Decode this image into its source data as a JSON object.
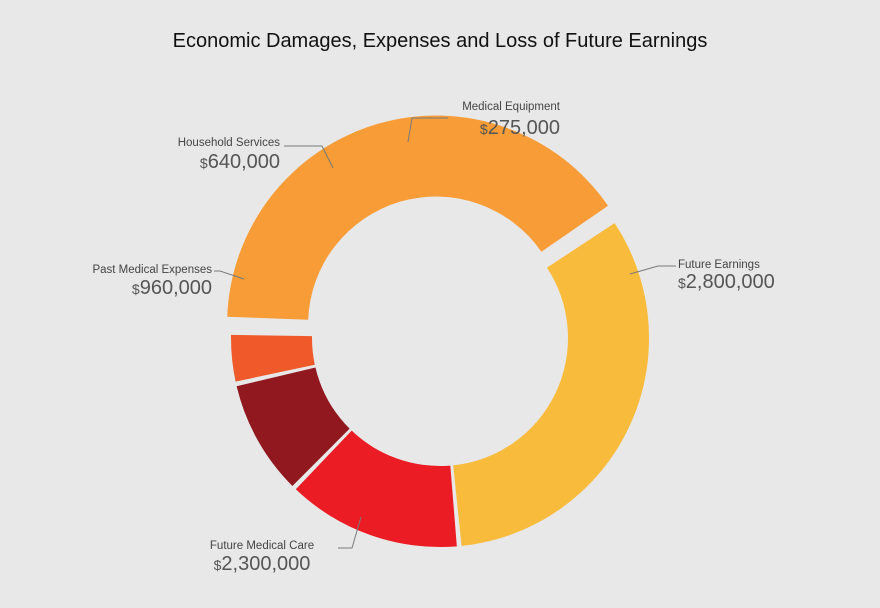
{
  "chart_data": {
    "type": "pie",
    "variant": "donut",
    "title": "Economic Damages, Expenses and Loss of Future Earnings",
    "currency_symbol": "$",
    "slices": [
      {
        "name": "Future Earnings",
        "value": 2800000,
        "value_label": "2,800,000",
        "color": "#f89c37",
        "exploded": true
      },
      {
        "name": "Future Medical Care",
        "value": 2300000,
        "value_label": "2,300,000",
        "color": "#f9bb3b",
        "exploded": false
      },
      {
        "name": "Past Medical Expenses",
        "value": 960000,
        "value_label": "960,000",
        "color": "#ec1c24",
        "exploded": false
      },
      {
        "name": "Household Services",
        "value": 640000,
        "value_label": "640,000",
        "color": "#921820",
        "exploded": false
      },
      {
        "name": "Medical Equipment",
        "value": 275000,
        "value_label": "275,000",
        "color": "#f05a2a",
        "exploded": false
      }
    ]
  }
}
